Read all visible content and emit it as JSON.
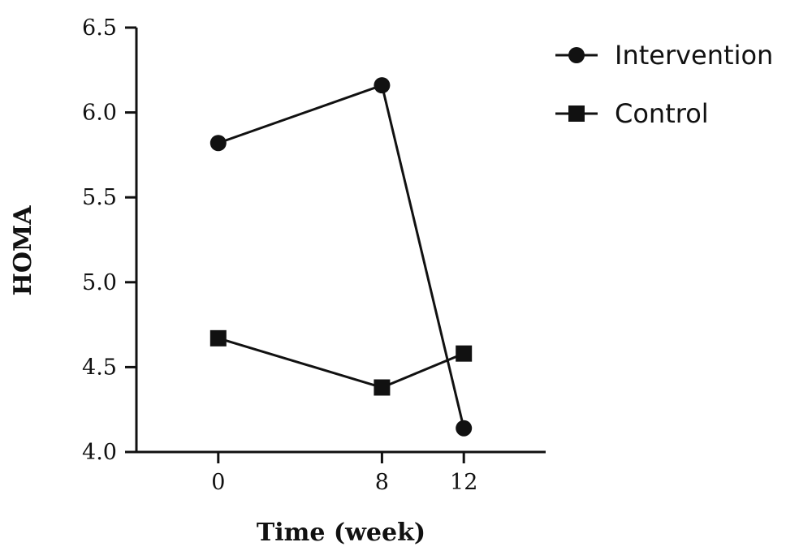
{
  "chart_data": {
    "type": "line",
    "xlabel": "Time (week)",
    "ylabel": "HOMA",
    "x": [
      0,
      8,
      12
    ],
    "x_tick_labels": [
      "0",
      "8",
      "12"
    ],
    "ylim": [
      4.0,
      6.5
    ],
    "y_ticks": [
      4.0,
      4.5,
      5.0,
      5.5,
      6.0,
      6.5
    ],
    "y_tick_labels": [
      "4.0",
      "4.5",
      "5.0",
      "5.5",
      "6.0",
      "6.5"
    ],
    "grid": false,
    "legend_position": "top-right",
    "series": [
      {
        "name": "Intervention",
        "marker": "circle",
        "color": "#111111",
        "values": [
          5.82,
          6.16,
          4.14
        ]
      },
      {
        "name": "Control",
        "marker": "square",
        "color": "#111111",
        "values": [
          4.67,
          4.38,
          4.58
        ]
      }
    ]
  }
}
